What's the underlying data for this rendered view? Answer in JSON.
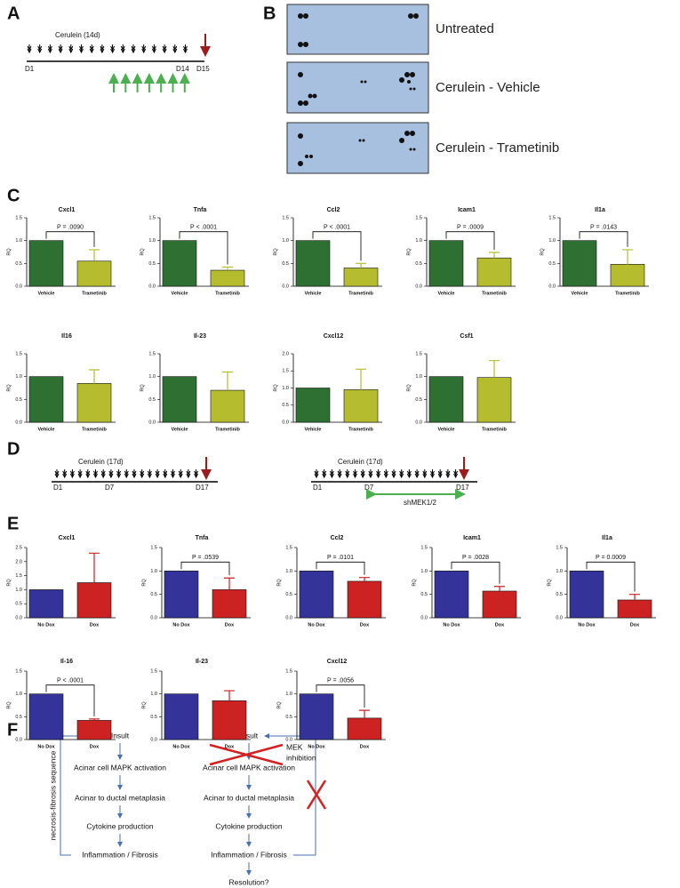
{
  "panel_labels": [
    "A",
    "B",
    "C",
    "D",
    "E",
    "F"
  ],
  "panel_a": {
    "treatment": "Cerulein (14d)",
    "day_start": "D1",
    "day_end": "D14",
    "day_final": "D15"
  },
  "panel_b": {
    "rows": [
      "Untreated",
      "Cerulein - Vehicle",
      "Cerulein - Trametinib"
    ]
  },
  "panel_d": {
    "left": {
      "treatment": "Cerulein (17d)",
      "days": [
        "D1",
        "D7",
        "D17"
      ]
    },
    "right": {
      "treatment": "Cerulein (17d)",
      "days": [
        "D1",
        "D7",
        "D17"
      ],
      "knockdown": "shMEK1/2"
    }
  },
  "chart_data": [
    {
      "type": "bar",
      "title": "Cxcl1",
      "y_label": "RQ",
      "categories": [
        "Vehicle",
        "Trametinib"
      ],
      "values": [
        1,
        0.55
      ],
      "errors": [
        null,
        0.25
      ],
      "colors": [
        "#2e7032",
        "#b5bd2e"
      ],
      "annotation": "P = .0090",
      "ylim": [
        0,
        1.5
      ],
      "yticks": [
        {
          "value": 0,
          "label": "0.0"
        },
        0.5,
        {
          "value": 1,
          "label": "1.0"
        },
        1.5
      ]
    },
    {
      "type": "bar",
      "title": "Tnfa",
      "y_label": "RQ",
      "categories": [
        "Vehicle",
        "Trametinib"
      ],
      "values": [
        1,
        0.35
      ],
      "errors": [
        null,
        0.07
      ],
      "colors": [
        "#2e7032",
        "#b5bd2e"
      ],
      "annotation": "P < .0001",
      "ylim": [
        0,
        1.5
      ],
      "yticks": [
        {
          "value": 0,
          "label": "0.0"
        },
        0.5,
        {
          "value": 1,
          "label": "1.0"
        },
        1.5
      ]
    },
    {
      "type": "bar",
      "title": "Ccl2",
      "y_label": "RQ",
      "categories": [
        "Vehicle",
        "Trametinib"
      ],
      "values": [
        1,
        0.4
      ],
      "errors": [
        null,
        0.1
      ],
      "colors": [
        "#2e7032",
        "#b5bd2e"
      ],
      "annotation": "P < .0001",
      "ylim": [
        0,
        1.5
      ],
      "yticks": [
        {
          "value": 0,
          "label": "0.0"
        },
        0.5,
        {
          "value": 1,
          "label": "1.0"
        },
        1.5
      ]
    },
    {
      "type": "bar",
      "title": "Icam1",
      "y_label": "RQ",
      "categories": [
        "Vehicle",
        "Trametinib"
      ],
      "values": [
        1,
        0.62
      ],
      "errors": [
        null,
        0.12
      ],
      "colors": [
        "#2e7032",
        "#b5bd2e"
      ],
      "annotation": "P = .0009",
      "ylim": [
        0,
        1.5
      ],
      "yticks": [
        {
          "value": 0,
          "label": "0.0"
        },
        0.5,
        {
          "value": 1,
          "label": "1.0"
        },
        1.5
      ]
    },
    {
      "type": "bar",
      "title": "Il1a",
      "y_label": "RQ",
      "categories": [
        "Vehicle",
        "Trametinib"
      ],
      "values": [
        1,
        0.48
      ],
      "errors": [
        null,
        0.32
      ],
      "colors": [
        "#2e7032",
        "#b5bd2e"
      ],
      "annotation": "P = .0143",
      "ylim": [
        0,
        1.5
      ],
      "yticks": [
        {
          "value": 0,
          "label": "0.0"
        },
        0.5,
        {
          "value": 1,
          "label": "1.0"
        },
        1.5
      ]
    },
    {
      "type": "bar",
      "title": "Il16",
      "y_label": "RQ",
      "categories": [
        "Vehicle",
        "Trametinib"
      ],
      "values": [
        1,
        0.85
      ],
      "errors": [
        null,
        0.3
      ],
      "colors": [
        "#2e7032",
        "#b5bd2e"
      ],
      "ylim": [
        0,
        1.5
      ],
      "yticks": [
        {
          "value": 0,
          "label": "0.0"
        },
        0.5,
        {
          "value": 1,
          "label": "1.0"
        },
        1.5
      ]
    },
    {
      "type": "bar",
      "title": "Il-23",
      "y_label": "RQ",
      "categories": [
        "Vehicle",
        "Trametinib"
      ],
      "values": [
        1,
        0.7
      ],
      "errors": [
        null,
        0.4
      ],
      "colors": [
        "#2e7032",
        "#b5bd2e"
      ],
      "ylim": [
        0,
        1.5
      ],
      "yticks": [
        {
          "value": 0,
          "label": "0.0"
        },
        0.5,
        {
          "value": 1,
          "label": "1.0"
        },
        1.5
      ]
    },
    {
      "type": "bar",
      "title": "Cxcl12",
      "y_label": "RQ",
      "categories": [
        "Vehicle",
        "Trametinib"
      ],
      "values": [
        1,
        0.95
      ],
      "errors": [
        null,
        0.6
      ],
      "colors": [
        "#2e7032",
        "#b5bd2e"
      ],
      "ylim": [
        0,
        2
      ],
      "yticks": [
        {
          "value": 0,
          "label": "0.0"
        },
        0.5,
        {
          "value": 1,
          "label": "1.0"
        },
        1.5,
        {
          "value": 2,
          "label": "2.0"
        }
      ]
    },
    {
      "type": "bar",
      "title": "Csf1",
      "y_label": "RQ",
      "categories": [
        "Vehicle",
        "Trametinib"
      ],
      "values": [
        1,
        0.98
      ],
      "errors": [
        null,
        0.37
      ],
      "colors": [
        "#2e7032",
        "#b5bd2e"
      ],
      "ylim": [
        0,
        1.5
      ],
      "yticks": [
        {
          "value": 0,
          "label": "0.0"
        },
        0.5,
        {
          "value": 1,
          "label": "1.0"
        },
        1.5
      ]
    },
    {
      "type": "bar",
      "title": "Cxcl1",
      "y_label": "RQ",
      "categories": [
        "No Dox",
        "Dox"
      ],
      "values": [
        1,
        1.25
      ],
      "errors": [
        null,
        1.05
      ],
      "colors": [
        "#333399",
        "#cc2222"
      ],
      "ylim": [
        0,
        2.5
      ],
      "yticks": [
        {
          "value": 0,
          "label": "0.0"
        },
        0.5,
        {
          "value": 1,
          "label": "1.0"
        },
        1.5,
        {
          "value": 2,
          "label": "2.0"
        },
        2.5
      ]
    },
    {
      "type": "bar",
      "title": "Tnfa",
      "y_label": "RQ",
      "categories": [
        "No Dox",
        "Dox"
      ],
      "values": [
        1,
        0.6
      ],
      "errors": [
        null,
        0.25
      ],
      "colors": [
        "#333399",
        "#cc2222"
      ],
      "annotation": "P = .0539",
      "ylim": [
        0,
        1.5
      ],
      "yticks": [
        {
          "value": 0,
          "label": "0.0"
        },
        0.5,
        {
          "value": 1,
          "label": "1.0"
        },
        1.5
      ]
    },
    {
      "type": "bar",
      "title": "Ccl2",
      "y_label": "RQ",
      "categories": [
        "No Dox",
        "Dox"
      ],
      "values": [
        1,
        0.78
      ],
      "errors": [
        null,
        0.08
      ],
      "colors": [
        "#333399",
        "#cc2222"
      ],
      "annotation": "P = .0101",
      "ylim": [
        0,
        1.5
      ],
      "yticks": [
        {
          "value": 0,
          "label": "0.0"
        },
        0.5,
        {
          "value": 1,
          "label": "1.0"
        },
        1.5
      ]
    },
    {
      "type": "bar",
      "title": "Icam1",
      "y_label": "RQ",
      "categories": [
        "No Dox",
        "Dox"
      ],
      "values": [
        1,
        0.57
      ],
      "errors": [
        null,
        0.1
      ],
      "colors": [
        "#333399",
        "#cc2222"
      ],
      "annotation": "P = .0028",
      "ylim": [
        0,
        1.5
      ],
      "yticks": [
        {
          "value": 0,
          "label": "0.0"
        },
        0.5,
        {
          "value": 1,
          "label": "1.0"
        },
        1.5
      ]
    },
    {
      "type": "bar",
      "title": "Il1a",
      "y_label": "RQ",
      "categories": [
        "No Dox",
        "Dox"
      ],
      "values": [
        1,
        0.38
      ],
      "errors": [
        null,
        0.12
      ],
      "colors": [
        "#333399",
        "#cc2222"
      ],
      "annotation": "P = 0.0009",
      "ylim": [
        0,
        1.5
      ],
      "yticks": [
        {
          "value": 0,
          "label": "0.0"
        },
        0.5,
        {
          "value": 1,
          "label": "1.0"
        },
        1.5
      ]
    },
    {
      "type": "bar",
      "title": "Il-16",
      "y_label": "RQ",
      "categories": [
        "No Dox",
        "Dox"
      ],
      "values": [
        1,
        0.42
      ],
      "errors": [
        null,
        0.03
      ],
      "colors": [
        "#333399",
        "#cc2222"
      ],
      "annotation": "P < .0001",
      "ylim": [
        0,
        1.5
      ],
      "yticks": [
        {
          "value": 0,
          "label": "0.0"
        },
        0.5,
        {
          "value": 1,
          "label": "1.0"
        },
        1.5
      ]
    },
    {
      "type": "bar",
      "title": "Il-23",
      "y_label": "RQ",
      "categories": [
        "No Dox",
        "Dox"
      ],
      "values": [
        1,
        0.85
      ],
      "errors": [
        null,
        0.22
      ],
      "colors": [
        "#333399",
        "#cc2222"
      ],
      "ylim": [
        0,
        1.5
      ],
      "yticks": [
        {
          "value": 0,
          "label": "0.0"
        },
        0.5,
        {
          "value": 1,
          "label": "1.0"
        },
        1.5
      ]
    },
    {
      "type": "bar",
      "title": "Cxcl12",
      "y_label": "RQ",
      "categories": [
        "No Dox",
        "Dox"
      ],
      "values": [
        1,
        0.47
      ],
      "errors": [
        null,
        0.17
      ],
      "colors": [
        "#333399",
        "#cc2222"
      ],
      "annotation": "P = .0056",
      "ylim": [
        0,
        1.5
      ],
      "yticks": [
        {
          "value": 0,
          "label": "0.0"
        },
        0.5,
        {
          "value": 1,
          "label": "1.0"
        },
        1.5
      ]
    }
  ],
  "panel_f": {
    "side_label": "necrosis-fibrosis sequence",
    "left_steps": [
      "Insult",
      "Acinar cell MAPK activation",
      "Acinar to ductal metaplasia",
      "Cytokine production",
      "Inflammation / Fibrosis"
    ],
    "right_steps": [
      "Insult",
      "Acinar cell MAPK activation",
      "Acinar to ductal metaplasia",
      "Cytokine production",
      "Inflammation / Fibrosis",
      "Resolution?"
    ],
    "inhibitor": [
      "MEK",
      "inhibition"
    ]
  }
}
